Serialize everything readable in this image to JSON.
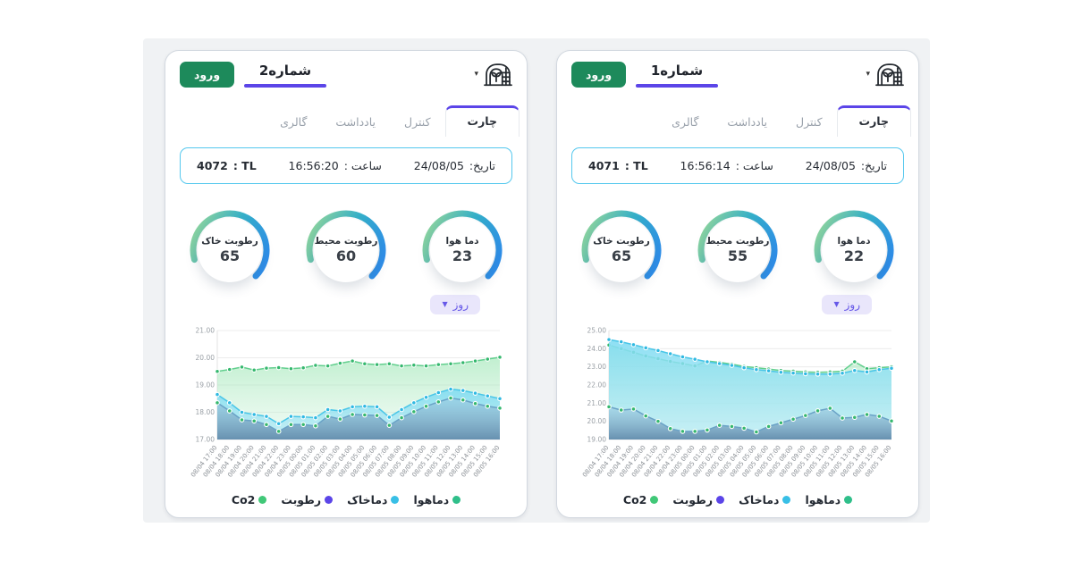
{
  "page": {
    "backdrop_color": "#f0f2f4",
    "accent_color": "#5b45e8",
    "login_button_color": "#1d8a5b",
    "info_border_color": "#55c8ee"
  },
  "cards": [
    {
      "title": "شماره2",
      "login_label": "ورود",
      "brand_icon": "greenhouse-icon",
      "tabs": [
        {
          "label": "چارت",
          "active": true
        },
        {
          "label": "کنترل",
          "active": false
        },
        {
          "label": "یادداشت",
          "active": false
        },
        {
          "label": "گالری",
          "active": false
        }
      ],
      "info": {
        "date_label": "تاریخ:",
        "date_value": "24/08/05",
        "time_label": "ساعت :",
        "time_value": "16:56:20",
        "tl_label": "TL :",
        "tl_value": "4072"
      },
      "gauges": [
        {
          "label": "دما هوا",
          "value": "23"
        },
        {
          "label": "رطوبت محیط",
          "value": "60"
        },
        {
          "label": "رطوبت خاک",
          "value": "65"
        }
      ],
      "range_label": "روز",
      "legend": [
        {
          "label": "دماهوا",
          "color": "#2fbf8a"
        },
        {
          "label": "دماخاک",
          "color": "#38bfe6"
        },
        {
          "label": "رطوبت",
          "color": "#5b45e8"
        },
        {
          "label": "Co2",
          "color": "#41c878"
        }
      ]
    },
    {
      "title": "شماره1",
      "login_label": "ورود",
      "brand_icon": "greenhouse-icon",
      "tabs": [
        {
          "label": "چارت",
          "active": true
        },
        {
          "label": "کنترل",
          "active": false
        },
        {
          "label": "یادداشت",
          "active": false
        },
        {
          "label": "گالری",
          "active": false
        }
      ],
      "info": {
        "date_label": "تاریخ:",
        "date_value": "24/08/05",
        "time_label": "ساعت :",
        "time_value": "16:56:14",
        "tl_label": "TL :",
        "tl_value": "4071"
      },
      "gauges": [
        {
          "label": "دما هوا",
          "value": "22"
        },
        {
          "label": "رطوبت محیط",
          "value": "55"
        },
        {
          "label": "رطوبت خاک",
          "value": "65"
        }
      ],
      "range_label": "روز",
      "legend": [
        {
          "label": "دماهوا",
          "color": "#2fbf8a"
        },
        {
          "label": "دماخاک",
          "color": "#38bfe6"
        },
        {
          "label": "رطوبت",
          "color": "#5b45e8"
        },
        {
          "label": "Co2",
          "color": "#41c878"
        }
      ]
    }
  ],
  "chart_data": [
    {
      "card": "شماره2",
      "type": "area",
      "grid": true,
      "legend_position": "bottom",
      "ylim": [
        17,
        21
      ],
      "y_ticks": [
        17,
        18,
        19,
        20,
        21
      ],
      "x_labels": [
        "08/04 17:00",
        "08/04 18:00",
        "08/04 19:00",
        "08/04 20:00",
        "08/04 21:00",
        "08/04 22:00",
        "08/04 23:00",
        "08/05 00:00",
        "08/05 01:00",
        "08/05 02:00",
        "08/05 03:00",
        "08/05 04:00",
        "08/05 05:00",
        "08/05 06:00",
        "08/05 07:00",
        "08/05 08:00",
        "08/05 09:00",
        "08/05 10:00",
        "08/05 11:00",
        "08/05 12:00",
        "08/05 13:00",
        "08/05 14:00",
        "08/05 15:00",
        "08/05 16:00"
      ],
      "series": [
        {
          "name": "Co2",
          "line": "#62cf8e",
          "dot": "#35b86e",
          "fill_top": "rgba(142,226,169,0.55)",
          "fill_bottom": "rgba(214,244,224,0.35)",
          "values": [
            19.5,
            19.57,
            19.66,
            19.55,
            19.62,
            19.64,
            19.6,
            19.63,
            19.72,
            19.7,
            19.8,
            19.88,
            19.78,
            19.75,
            19.78,
            19.7,
            19.73,
            19.7,
            19.75,
            19.78,
            19.82,
            19.88,
            19.95,
            20.02
          ]
        },
        {
          "name": "دماخاک",
          "line": "#49c6e8",
          "dot": "#2fb9e2",
          "fill_top": "rgba(129,220,242,0.9)",
          "fill_bottom": "rgba(174,232,246,0.6)",
          "values": [
            18.65,
            18.35,
            18.0,
            17.92,
            17.85,
            17.58,
            17.85,
            17.83,
            17.8,
            18.1,
            18.05,
            18.2,
            18.22,
            18.2,
            17.82,
            18.1,
            18.35,
            18.55,
            18.72,
            18.85,
            18.8,
            18.7,
            18.6,
            18.5
          ]
        },
        {
          "name": "دماهوا",
          "line": "#6aa2c6",
          "dot": "#35b86e",
          "fill_top": "rgba(156,202,226,0.55)",
          "fill_bottom": "rgba(86,128,164,0.85)",
          "values": [
            18.35,
            18.05,
            17.72,
            17.68,
            17.55,
            17.3,
            17.55,
            17.55,
            17.5,
            17.85,
            17.75,
            17.92,
            17.9,
            17.88,
            17.52,
            17.8,
            18.02,
            18.22,
            18.38,
            18.52,
            18.45,
            18.32,
            18.22,
            18.15
          ]
        },
        {
          "name": "رطوبت",
          "line": "#5b45e8",
          "dot": "#5b45e8",
          "fill_top": "rgba(91,69,232,0.3)",
          "fill_bottom": "rgba(91,69,232,0.1)",
          "values": []
        }
      ]
    },
    {
      "card": "شماره1",
      "type": "area",
      "grid": true,
      "legend_position": "bottom",
      "ylim": [
        19,
        25
      ],
      "y_ticks": [
        19,
        20,
        21,
        22,
        23,
        24,
        25
      ],
      "x_labels": [
        "08/04 17:00",
        "08/04 18:00",
        "08/04 19:00",
        "08/04 20:00",
        "08/04 21:00",
        "08/04 22:00",
        "08/04 23:00",
        "08/05 00:00",
        "08/05 01:00",
        "08/05 02:00",
        "08/05 03:00",
        "08/05 04:00",
        "08/05 05:00",
        "08/05 06:00",
        "08/05 07:00",
        "08/05 08:00",
        "08/05 09:00",
        "08/05 10:00",
        "08/05 11:00",
        "08/05 12:00",
        "08/05 13:00",
        "08/05 14:00",
        "08/05 15:00",
        "08/05 16:00"
      ],
      "series": [
        {
          "name": "Co2",
          "line": "#62cf8e",
          "dot": "#35b86e",
          "fill_top": "rgba(142,226,169,0.55)",
          "fill_bottom": "rgba(214,244,224,0.35)",
          "values": [
            24.2,
            24.0,
            23.8,
            23.6,
            23.45,
            23.3,
            23.18,
            23.05,
            23.32,
            23.25,
            23.15,
            23.02,
            22.95,
            22.88,
            22.8,
            22.76,
            22.72,
            22.7,
            22.72,
            22.76,
            23.28,
            22.9,
            22.95,
            23.0
          ]
        },
        {
          "name": "دماخاک",
          "line": "#49c6e8",
          "dot": "#2fb9e2",
          "fill_top": "rgba(129,220,242,0.9)",
          "fill_bottom": "rgba(174,232,246,0.6)",
          "values": [
            24.5,
            24.38,
            24.22,
            24.05,
            23.9,
            23.72,
            23.55,
            23.42,
            23.28,
            23.18,
            23.08,
            22.95,
            22.85,
            22.78,
            22.7,
            22.66,
            22.62,
            22.6,
            22.6,
            22.65,
            22.8,
            22.72,
            22.85,
            22.92
          ]
        },
        {
          "name": "دماهوا",
          "line": "#6aa2c6",
          "dot": "#35b86e",
          "fill_top": "rgba(156,202,226,0.55)",
          "fill_bottom": "rgba(86,128,164,0.85)",
          "values": [
            20.8,
            20.62,
            20.68,
            20.3,
            20.0,
            19.6,
            19.45,
            19.45,
            19.52,
            19.78,
            19.72,
            19.62,
            19.42,
            19.72,
            19.92,
            20.12,
            20.32,
            20.58,
            20.72,
            20.18,
            20.22,
            20.38,
            20.28,
            20.02
          ]
        },
        {
          "name": "رطوبت",
          "line": "#5b45e8",
          "dot": "#5b45e8",
          "fill_top": "rgba(91,69,232,0.3)",
          "fill_bottom": "rgba(91,69,232,0.1)",
          "values": []
        }
      ]
    }
  ]
}
